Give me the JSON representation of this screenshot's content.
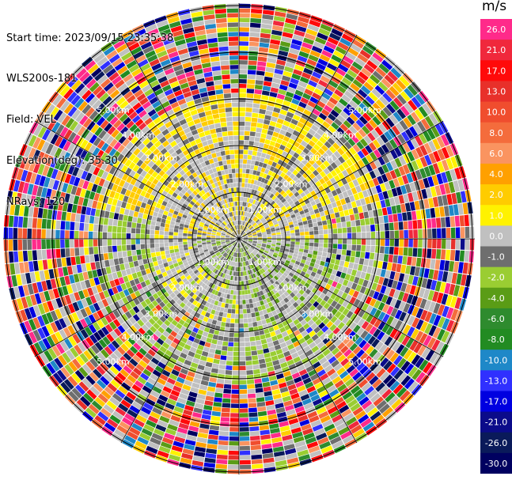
{
  "header": {
    "start_time": "Start time: 2023/09/15 23:35:38",
    "instrument": "WLS200s-181",
    "field": "Field: VEL",
    "elevation": "Elevation(deg): 35.30",
    "nrays": "NRays: 120"
  },
  "colorbar": {
    "unit": "m/s",
    "ticks": [
      "26.0",
      "21.0",
      "17.0",
      "13.0",
      "10.0",
      "8.0",
      "6.0",
      "4.0",
      "2.0",
      "1.0",
      "0.0",
      "-1.0",
      "-2.0",
      "-4.0",
      "-6.0",
      "-8.0",
      "-10.0",
      "-13.0",
      "-17.0",
      "-21.0",
      "-26.0",
      "-30.0"
    ],
    "colors": [
      "#ff2a8a",
      "#f0283c",
      "#ff0a0a",
      "#e8302a",
      "#f04d2e",
      "#f46c3c",
      "#fa9460",
      "#ffa000",
      "#ffcc00",
      "#fff200",
      "#c0c0c0",
      "#6e6e6e",
      "#9acd32",
      "#5a9c16",
      "#2e8b2e",
      "#228b22",
      "#1e88c8",
      "#3030ff",
      "#0000e0",
      "#0b0b8a",
      "#0a1a5a",
      "#000060"
    ]
  },
  "range_rings": {
    "labels": [
      "1.00km",
      "2.00km",
      "3.00km",
      "4.00km",
      "5.00km",
      "6.00km"
    ]
  }
}
